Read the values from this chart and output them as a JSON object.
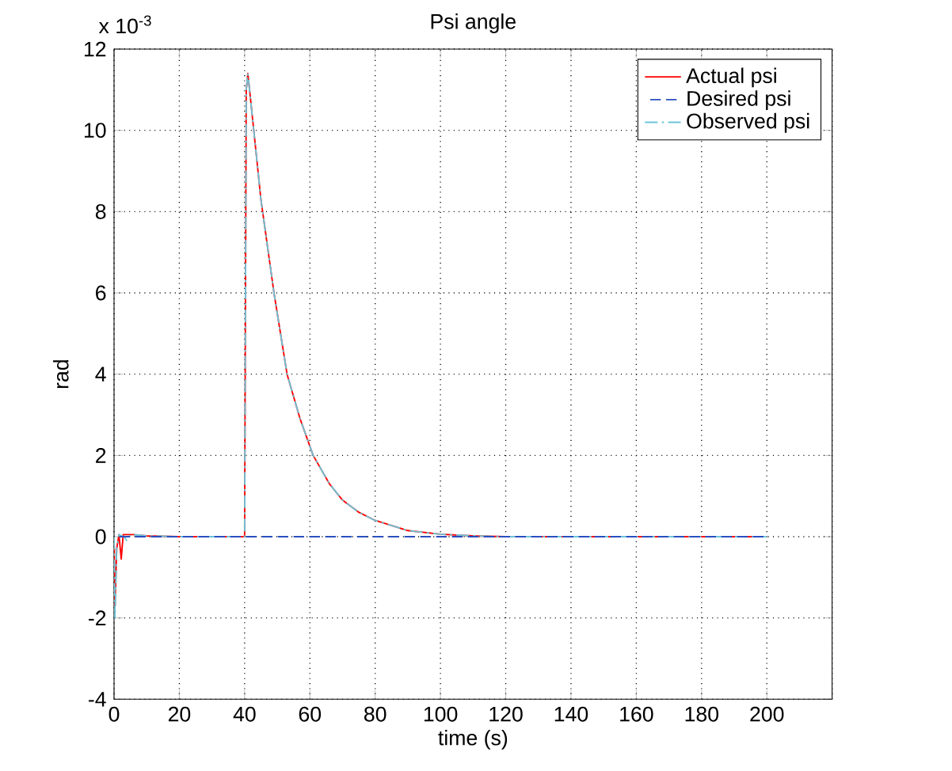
{
  "chart_data": {
    "type": "line",
    "title": "Psi angle",
    "xlabel": "time (s)",
    "ylabel": "rad",
    "annotations": [
      "x 10$^{-3}$"
    ],
    "xlim": [
      0,
      220
    ],
    "ylim": [
      -4,
      12
    ],
    "xticks": [
      0,
      20,
      40,
      60,
      80,
      100,
      120,
      140,
      160,
      180,
      200,
      {
        "value": 220,
        "label": null
      }
    ],
    "yticks": [
      -4,
      -2,
      0,
      2,
      4,
      6,
      8,
      10,
      12
    ],
    "grid": true,
    "legend": "top right",
    "marker": "none",
    "series": [
      {
        "name": "Actual psi",
        "color": "#ff0000",
        "line_style": "solid",
        "x": [
          0,
          0.3,
          0.8,
          1.5,
          2.2,
          2.8,
          4,
          6,
          10,
          20,
          40,
          40.5,
          41,
          45,
          49,
          53,
          57,
          61,
          66,
          70,
          75,
          80,
          90,
          100,
          110,
          120,
          200
        ],
        "values": [
          0,
          -1.7,
          -0.3,
          0.05,
          -0.55,
          0.05,
          0.05,
          0.05,
          0.02,
          0,
          0,
          11.0,
          11.4,
          8.3,
          6.0,
          4.0,
          2.9,
          2.0,
          1.3,
          0.9,
          0.6,
          0.4,
          0.15,
          0.06,
          0.02,
          0,
          0
        ]
      },
      {
        "name": "Desired psi",
        "color": "#2a4fbf",
        "line_style": "dashed",
        "x": [
          0,
          200
        ],
        "values": [
          0,
          0
        ]
      },
      {
        "name": "Observed psi",
        "color": "#6cc5d8",
        "line_style": "dashdot",
        "x": [
          0,
          0.3,
          0.8,
          1.5,
          3,
          4,
          5,
          6,
          10,
          20,
          40,
          40.5,
          41,
          45,
          49,
          53,
          57,
          61,
          66,
          70,
          75,
          80,
          90,
          100,
          110,
          120,
          200
        ],
        "values": [
          0,
          -2.0,
          -0.3,
          0.05,
          0.0,
          -0.1,
          0.05,
          0.05,
          0.02,
          0,
          0,
          11.0,
          11.4,
          8.3,
          6.0,
          4.0,
          2.9,
          2.0,
          1.3,
          0.9,
          0.6,
          0.4,
          0.15,
          0.06,
          0.02,
          0,
          0
        ]
      }
    ]
  }
}
